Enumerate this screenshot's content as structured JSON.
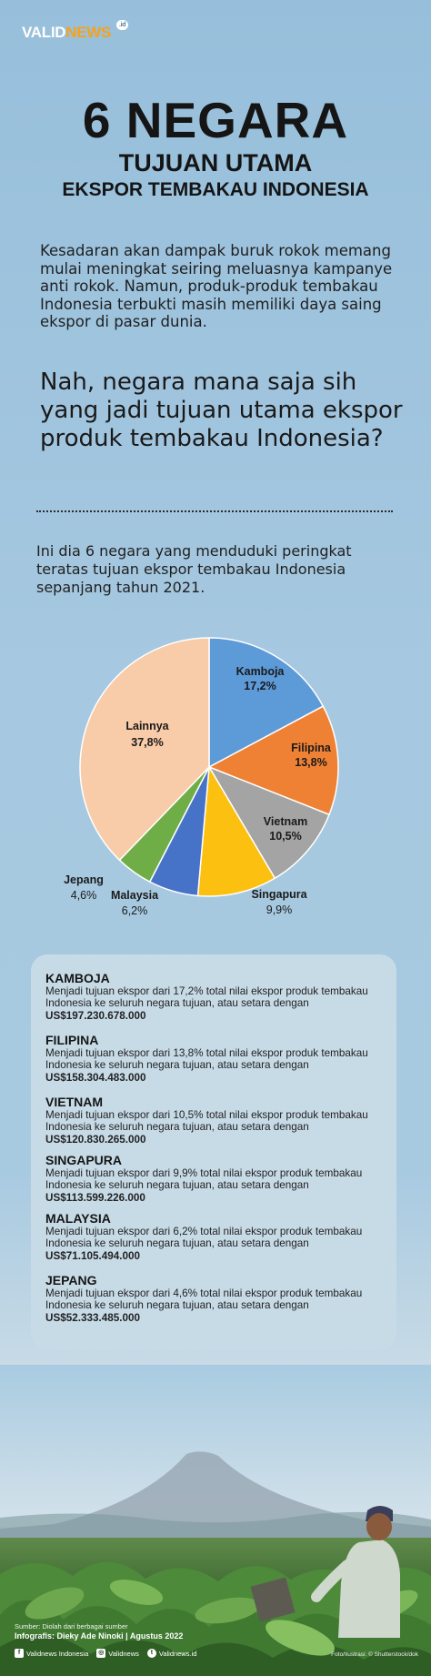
{
  "brand": {
    "logo_main": "VALID",
    "logo_accent": "NEWS",
    "logo_sup": ".id"
  },
  "header": {
    "title": "6 NEGARA",
    "subtitle1": "TUJUAN UTAMA",
    "subtitle2": "EKSPOR TEMBAKAU INDONESIA"
  },
  "intro": "Kesadaran akan dampak buruk rokok memang mulai meningkat seiring meluasnya kampanye anti rokok. Namun, produk-produk tembakau Indonesia terbukti masih memiliki daya saing ekspor di pasar dunia.",
  "question": "Nah, negara mana saja sih yang jadi tujuan utama ekspor produk tembakau Indonesia?",
  "lead": "Ini dia 6 negara yang menduduki peringkat teratas tujuan ekspor tembakau Indonesia sepanjang tahun 2021.",
  "chart_data": {
    "type": "pie",
    "title": "",
    "unit": "%",
    "slices": [
      {
        "name": "Kamboja",
        "value": 17.2,
        "label": "17,2%",
        "color": "#5c9ad8"
      },
      {
        "name": "Filipina",
        "value": 13.8,
        "label": "13,8%",
        "color": "#ef8135"
      },
      {
        "name": "Vietnam",
        "value": 10.5,
        "label": "10,5%",
        "color": "#a4a4a4"
      },
      {
        "name": "Singapura",
        "value": 9.9,
        "label": "9,9%",
        "color": "#fcc010"
      },
      {
        "name": "Malaysia",
        "value": 6.2,
        "label": "6,2%",
        "color": "#4673c7"
      },
      {
        "name": "Jepang",
        "value": 4.6,
        "label": "4,6%",
        "color": "#6fae46"
      },
      {
        "name": "Lainnya",
        "value": 37.8,
        "label": "37,8%",
        "color": "#f8cba9"
      }
    ]
  },
  "details": [
    {
      "name": "KAMBOJA",
      "text": "Menjadi tujuan ekspor dari 17,2% total nilai ekspor produk tembakau Indonesia ke seluruh negara tujuan, atau setara dengan ",
      "amount": "US$197.230.678.000"
    },
    {
      "name": "FILIPINA",
      "text": "Menjadi tujuan ekspor dari 13,8% total nilai ekspor produk tembakau Indonesia ke seluruh negara tujuan, atau setara dengan ",
      "amount": "US$158.304.483.000"
    },
    {
      "name": "VIETNAM",
      "text": "Menjadi tujuan ekspor dari 10,5% total nilai ekspor produk tembakau Indonesia ke seluruh negara tujuan, atau setara dengan ",
      "amount": "US$120.830.265.000"
    },
    {
      "name": "SINGAPURA",
      "text": "Menjadi tujuan ekspor dari 9,9% total nilai ekspor produk tembakau Indonesia ke seluruh negara tujuan, atau setara dengan ",
      "amount": "US$113.599.226.000"
    },
    {
      "name": "MALAYSIA",
      "text": "Menjadi tujuan ekspor dari 6,2% total nilai ekspor produk tembakau Indonesia ke seluruh negara tujuan, atau setara dengan ",
      "amount": "US$71.105.494.000"
    },
    {
      "name": "JEPANG",
      "text": "Menjadi tujuan ekspor dari 4,6% total nilai ekspor produk tembakau Indonesia ke seluruh negara tujuan, atau setara dengan ",
      "amount": "US$52.333.485.000"
    }
  ],
  "footer": {
    "source": "Sumber: Diolah dari berbagai sumber",
    "credit": "Infografis: Dieky Ade Ninoki | Agustus 2022",
    "social": [
      {
        "icon": "facebook-icon",
        "text": "Validnews Indonesia"
      },
      {
        "icon": "instagram-icon",
        "text": "Validnews"
      },
      {
        "icon": "twitter-icon",
        "text": "Validnews.id"
      }
    ],
    "photo_credit": "Foto/Ilustrasi: © Shutterstock/dok"
  }
}
